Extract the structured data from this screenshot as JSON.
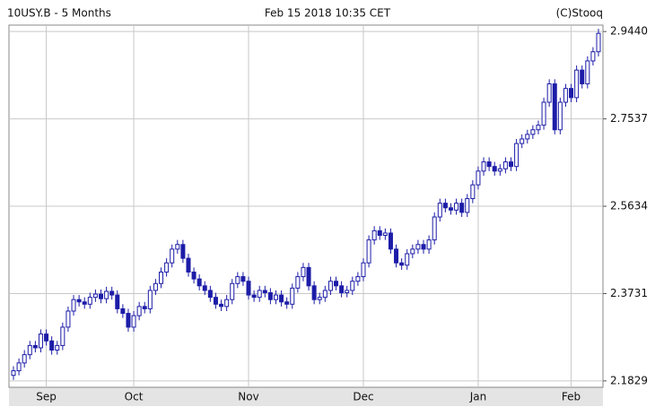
{
  "chart_data": {
    "type": "candlestick",
    "title": "10USY.B - 5 Months",
    "subtitle": "Feb 15 2018 10:35 CET",
    "source": "(C)Stooq",
    "color": "#1c1ca8",
    "grid": true,
    "ylim": [
      2.169,
      2.958
    ],
    "yticks": [
      {
        "value": 2.944,
        "label": "2.9440"
      },
      2.7537,
      2.5634,
      2.3731,
      2.1829
    ],
    "xticks": [
      {
        "value": 6,
        "label": "Sep"
      },
      {
        "value": 22,
        "label": "Oct"
      },
      {
        "value": 43,
        "label": "Nov"
      },
      {
        "value": 64,
        "label": "Dec"
      },
      {
        "value": 85,
        "label": "Jan"
      },
      {
        "value": 102,
        "label": "Feb"
      }
    ],
    "open": [
      2.195,
      2.205,
      2.222,
      2.24,
      2.26,
      2.255,
      2.285,
      2.27,
      2.25,
      2.26,
      2.3,
      2.335,
      2.36,
      2.355,
      2.35,
      2.365,
      2.372,
      2.362,
      2.378,
      2.37,
      2.34,
      2.33,
      2.3,
      2.325,
      2.345,
      2.34,
      2.38,
      2.395,
      2.42,
      2.44,
      2.47,
      2.48,
      2.45,
      2.42,
      2.405,
      2.39,
      2.38,
      2.365,
      2.35,
      2.345,
      2.36,
      2.395,
      2.41,
      2.4,
      2.37,
      2.365,
      2.38,
      2.375,
      2.36,
      2.37,
      2.355,
      2.35,
      2.385,
      2.41,
      2.43,
      2.39,
      2.36,
      2.365,
      2.38,
      2.4,
      2.39,
      2.375,
      2.38,
      2.4,
      2.41,
      2.44,
      2.49,
      2.51,
      2.5,
      2.505,
      2.47,
      2.44,
      2.435,
      2.46,
      2.47,
      2.48,
      2.47,
      2.49,
      2.54,
      2.57,
      2.56,
      2.555,
      2.57,
      2.55,
      2.58,
      2.61,
      2.64,
      2.66,
      2.65,
      2.64,
      2.645,
      2.66,
      2.65,
      2.7,
      2.71,
      2.72,
      2.73,
      2.74,
      2.79,
      2.83,
      2.73,
      2.79,
      2.82,
      2.8,
      2.86,
      2.83,
      2.88,
      2.9
    ],
    "high": [
      2.215,
      2.232,
      2.25,
      2.27,
      2.27,
      2.295,
      2.295,
      2.28,
      2.27,
      2.31,
      2.345,
      2.37,
      2.37,
      2.365,
      2.375,
      2.382,
      2.382,
      2.388,
      2.388,
      2.38,
      2.35,
      2.34,
      2.335,
      2.355,
      2.355,
      2.39,
      2.405,
      2.43,
      2.45,
      2.48,
      2.49,
      2.49,
      2.46,
      2.43,
      2.415,
      2.4,
      2.39,
      2.375,
      2.36,
      2.37,
      2.405,
      2.42,
      2.42,
      2.41,
      2.38,
      2.39,
      2.39,
      2.385,
      2.38,
      2.38,
      2.365,
      2.395,
      2.42,
      2.44,
      2.44,
      2.4,
      2.375,
      2.39,
      2.41,
      2.41,
      2.4,
      2.39,
      2.41,
      2.42,
      2.45,
      2.5,
      2.52,
      2.52,
      2.515,
      2.515,
      2.48,
      2.45,
      2.47,
      2.48,
      2.49,
      2.49,
      2.5,
      2.55,
      2.58,
      2.58,
      2.57,
      2.58,
      2.58,
      2.59,
      2.62,
      2.65,
      2.67,
      2.67,
      2.66,
      2.655,
      2.67,
      2.67,
      2.71,
      2.72,
      2.73,
      2.74,
      2.75,
      2.8,
      2.84,
      2.84,
      2.8,
      2.83,
      2.83,
      2.87,
      2.87,
      2.89,
      2.91,
      2.95
    ],
    "low": [
      2.185,
      2.195,
      2.212,
      2.23,
      2.245,
      2.245,
      2.26,
      2.24,
      2.24,
      2.25,
      2.29,
      2.325,
      2.345,
      2.34,
      2.34,
      2.355,
      2.352,
      2.352,
      2.36,
      2.33,
      2.32,
      2.29,
      2.29,
      2.315,
      2.33,
      2.33,
      2.37,
      2.385,
      2.41,
      2.43,
      2.46,
      2.44,
      2.41,
      2.395,
      2.38,
      2.37,
      2.355,
      2.34,
      2.335,
      2.335,
      2.35,
      2.385,
      2.39,
      2.36,
      2.355,
      2.355,
      2.365,
      2.35,
      2.35,
      2.345,
      2.34,
      2.34,
      2.375,
      2.4,
      2.38,
      2.35,
      2.35,
      2.355,
      2.37,
      2.38,
      2.365,
      2.365,
      2.37,
      2.39,
      2.4,
      2.43,
      2.48,
      2.49,
      2.49,
      2.46,
      2.43,
      2.425,
      2.425,
      2.45,
      2.46,
      2.46,
      2.46,
      2.48,
      2.53,
      2.55,
      2.545,
      2.545,
      2.54,
      2.54,
      2.57,
      2.6,
      2.63,
      2.64,
      2.63,
      2.63,
      2.635,
      2.64,
      2.64,
      2.69,
      2.7,
      2.71,
      2.72,
      2.73,
      2.78,
      2.72,
      2.72,
      2.78,
      2.79,
      2.79,
      2.82,
      2.82,
      2.87,
      2.89
    ],
    "close": [
      2.205,
      2.222,
      2.24,
      2.26,
      2.255,
      2.285,
      2.27,
      2.25,
      2.26,
      2.3,
      2.335,
      2.36,
      2.355,
      2.35,
      2.365,
      2.372,
      2.362,
      2.378,
      2.37,
      2.34,
      2.33,
      2.3,
      2.325,
      2.345,
      2.34,
      2.38,
      2.395,
      2.42,
      2.44,
      2.47,
      2.48,
      2.45,
      2.42,
      2.405,
      2.39,
      2.38,
      2.365,
      2.35,
      2.345,
      2.36,
      2.395,
      2.41,
      2.4,
      2.37,
      2.365,
      2.38,
      2.375,
      2.36,
      2.37,
      2.355,
      2.35,
      2.385,
      2.41,
      2.43,
      2.39,
      2.36,
      2.365,
      2.38,
      2.4,
      2.39,
      2.375,
      2.38,
      2.4,
      2.41,
      2.44,
      2.49,
      2.51,
      2.5,
      2.505,
      2.47,
      2.44,
      2.435,
      2.46,
      2.47,
      2.48,
      2.47,
      2.49,
      2.54,
      2.57,
      2.56,
      2.555,
      2.57,
      2.55,
      2.58,
      2.61,
      2.64,
      2.66,
      2.65,
      2.64,
      2.645,
      2.66,
      2.65,
      2.7,
      2.71,
      2.72,
      2.73,
      2.74,
      2.79,
      2.83,
      2.73,
      2.79,
      2.82,
      2.8,
      2.86,
      2.83,
      2.88,
      2.9,
      2.94
    ]
  }
}
